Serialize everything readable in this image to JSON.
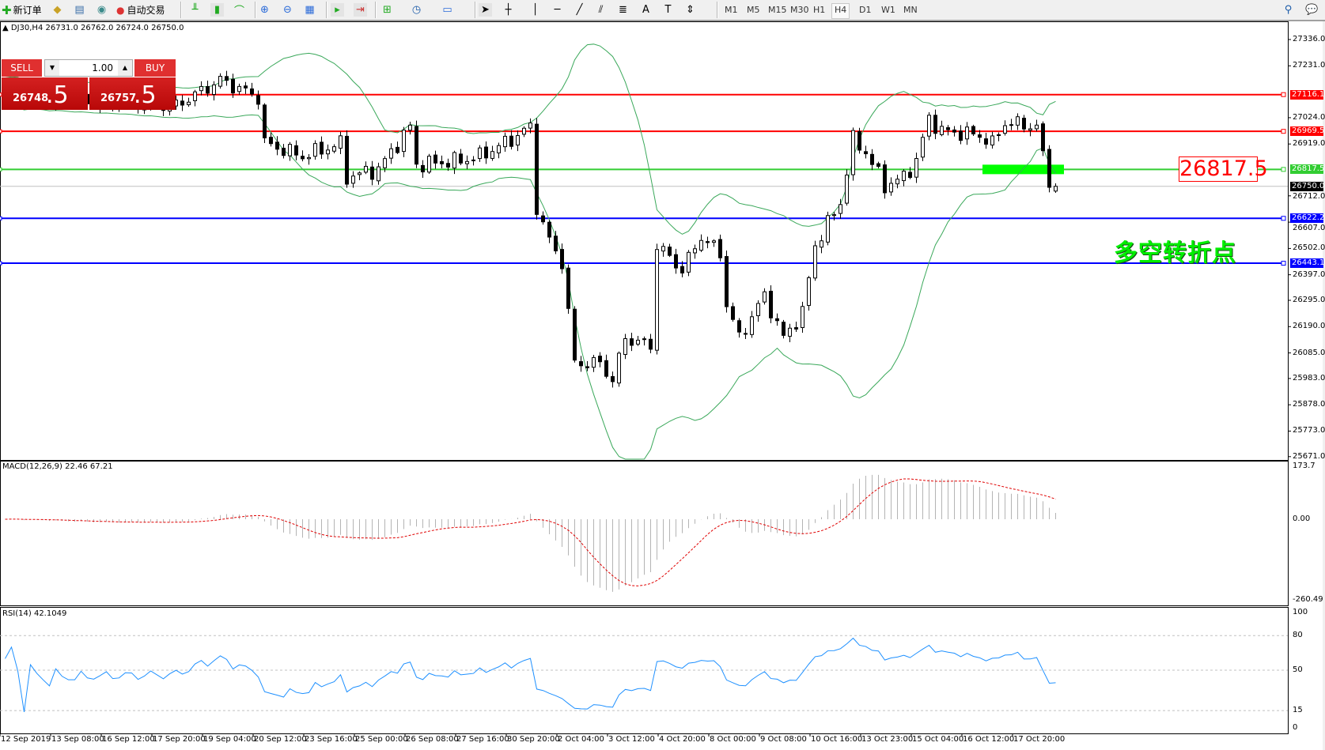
{
  "toolbar": {
    "new_order": "新订单",
    "auto_trading": "自动交易",
    "timeframes": [
      "M1",
      "M5",
      "M15",
      "M30",
      "H1",
      "H4",
      "D1",
      "W1",
      "MN"
    ],
    "active_timeframe": "H4",
    "icons": [
      "new-order-icon",
      "market-watch-icon",
      "navigator-icon",
      "signals-icon",
      "auto-trading-icon",
      "bar-chart-icon",
      "candlestick-icon",
      "line-chart-icon",
      "zoom-in-icon",
      "zoom-out-icon",
      "tile-windows-icon",
      "chart-shift-icon",
      "autoscroll-icon",
      "indicators-icon",
      "periods-icon",
      "templates-icon",
      "cursor-icon",
      "crosshair-icon",
      "vertical-line-icon",
      "horizontal-line-icon",
      "trendline-icon",
      "equidistant-channel-icon",
      "fibonacci-icon",
      "text-icon",
      "text-label-icon",
      "arrows-icon",
      "search-icon",
      "chat-icon"
    ]
  },
  "chart": {
    "symbol_info": "DJ30,H4  26731.0 26762.0 26724.0 26750.0",
    "current_price": "26750.0",
    "colors": {
      "bull_body": "#ffffff",
      "bear_body": "#000000",
      "bands": "#3aa85a",
      "grid_current": "#c0c0c0"
    }
  },
  "one_click": {
    "sell_label": "SELL",
    "buy_label": "BUY",
    "lot": "1.00",
    "sell_main": "26748",
    "sell_frac": ".5",
    "buy_main": "26757",
    "buy_frac": ".5"
  },
  "price_axis": [
    "27336.0",
    "27231.0",
    "27024.0",
    "26919.0",
    "26712.0",
    "26607.0",
    "26502.0",
    "26397.0",
    "26295.0",
    "26190.0",
    "26085.0",
    "25983.0",
    "25878.0",
    "25773.0",
    "25671.0"
  ],
  "levels": [
    {
      "price": 27116.1,
      "label": "27116.1",
      "color": "#ff0000"
    },
    {
      "price": 26969.5,
      "label": "26969.5",
      "color": "#ff0000"
    },
    {
      "price": 26817.5,
      "label": "26817.5",
      "color": "#32cd32"
    },
    {
      "price": 26622.2,
      "label": "26622.2",
      "color": "#0000ff"
    },
    {
      "price": 26443.1,
      "label": "26443.1",
      "color": "#0000ff"
    }
  ],
  "annotations": {
    "price_box": "26817.5",
    "price_box_color": "#ff0000",
    "zone_color": "#00ff00",
    "text": "多空转折点",
    "text_color": "#00ee00"
  },
  "macd": {
    "label": "MACD(12,26,9) 22.46 67.21",
    "axis": [
      "173.7",
      "0.00",
      "-260.49"
    ],
    "max": 173.7,
    "min": -260.49
  },
  "rsi": {
    "label": "RSI(14) 42.1049",
    "levels": [
      "100",
      "80",
      "50",
      "15",
      "0"
    ]
  },
  "time_axis": [
    "12 Sep 2019",
    "13 Sep 08:00",
    "16 Sep 12:00",
    "17 Sep 20:00",
    "19 Sep 04:00",
    "20 Sep 12:00",
    "23 Sep 16:00",
    "25 Sep 00:00",
    "26 Sep 08:00",
    "27 Sep 16:00",
    "30 Sep 20:00",
    "2 Oct 04:00",
    "3 Oct 12:00",
    "4 Oct 20:00",
    "8 Oct 00:00",
    "9 Oct 08:00",
    "10 Oct 16:00",
    "13 Oct 23:00",
    "15 Oct 04:00",
    "16 Oct 12:00",
    "17 Oct 20:00"
  ],
  "chart_data": {
    "type": "candlestick",
    "symbol": "DJ30",
    "timeframe": "H4",
    "ylim": [
      25671.0,
      27336.0
    ],
    "close_path": [
      [
        0,
        27123
      ],
      [
        12,
        27089
      ],
      [
        27,
        27072
      ],
      [
        34,
        27174
      ],
      [
        40,
        27106
      ],
      [
        41,
        26922
      ],
      [
        47,
        26870
      ],
      [
        53,
        26920
      ],
      [
        54,
        26786
      ],
      [
        59,
        26819
      ],
      [
        64,
        26988
      ],
      [
        65,
        26836
      ],
      [
        72,
        26853
      ],
      [
        75,
        26870
      ],
      [
        80,
        26937
      ],
      [
        83,
        26988
      ],
      [
        84,
        26668
      ],
      [
        86,
        26533
      ],
      [
        88,
        26448
      ],
      [
        90,
        26044
      ],
      [
        94,
        26044
      ],
      [
        96,
        25976
      ],
      [
        98,
        26145
      ],
      [
        102,
        26111
      ],
      [
        103,
        26516
      ],
      [
        107,
        26415
      ],
      [
        110,
        26550
      ],
      [
        113,
        26482
      ],
      [
        114,
        26280
      ],
      [
        116,
        26145
      ],
      [
        120,
        26314
      ],
      [
        123,
        26145
      ],
      [
        126,
        26246
      ],
      [
        128,
        26516
      ],
      [
        132,
        26685
      ],
      [
        134,
        26937
      ],
      [
        136,
        26887
      ],
      [
        139,
        26752
      ],
      [
        142,
        26786
      ],
      [
        144,
        26853
      ],
      [
        146,
        27021
      ],
      [
        148,
        26971
      ],
      [
        154,
        26954
      ],
      [
        156,
        26920
      ],
      [
        158,
        27005
      ],
      [
        163,
        26988
      ],
      [
        164,
        26870
      ],
      [
        165,
        26769
      ],
      [
        166,
        26750
      ]
    ],
    "last_bar": {
      "open": 26731.0,
      "high": 26762.0,
      "low": 26724.0,
      "close": 26750.0
    }
  }
}
